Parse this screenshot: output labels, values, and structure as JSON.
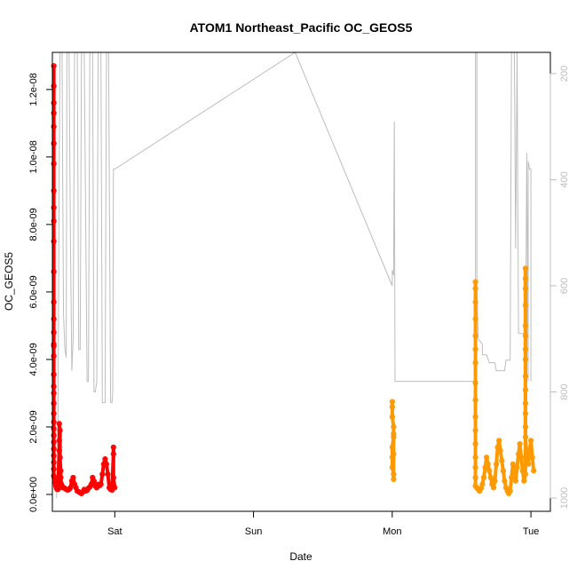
{
  "chart_data": {
    "type": "scatter",
    "title": "ATOM1 Northeast_Pacific OC_GEOS5",
    "xlabel": "Date",
    "ylabel": "OC_GEOS5",
    "x_ticks": [
      {
        "label": "Sat",
        "day": 1.0
      },
      {
        "label": "Sun",
        "day": 2.0
      },
      {
        "label": "Mon",
        "day": 3.0
      },
      {
        "label": "Tue",
        "day": 4.0
      }
    ],
    "xlim": [
      0.55,
      4.14
    ],
    "ylim": [
      -5e-10,
      1.31e-08
    ],
    "y_ticks": [
      {
        "label": "0.0e+00",
        "value": 0
      },
      {
        "label": "2.0e-09",
        "value": 2e-09
      },
      {
        "label": "4.0e-09",
        "value": 4e-09
      },
      {
        "label": "6.0e-09",
        "value": 6e-09
      },
      {
        "label": "8.0e-09",
        "value": 8e-09
      },
      {
        "label": "1.0e-08",
        "value": 1e-08
      },
      {
        "label": "1.2e-08",
        "value": 1.2e-08
      }
    ],
    "y2_ticks": [
      {
        "label": "200",
        "value": 200
      },
      {
        "label": "400",
        "value": 400
      },
      {
        "label": "600",
        "value": 600
      },
      {
        "label": "800",
        "value": 800
      },
      {
        "label": "1000",
        "value": 1000
      }
    ],
    "y2lim": [
      1025,
      160
    ],
    "grid": false,
    "legend": "none",
    "colors": {
      "series1": "#ff0000",
      "series2": "#ff9900",
      "pressure": "#bdbdbd",
      "axes": "#000000"
    },
    "series": [
      {
        "color": "#ff0000",
        "start_day": 0.55,
        "end_day": 1.0,
        "points": [
          [
            0.56,
            1.27e-08
          ],
          [
            0.56,
            1.21e-08
          ],
          [
            0.56,
            1.16e-08
          ],
          [
            0.56,
            1.13e-08
          ],
          [
            0.56,
            1.09e-08
          ],
          [
            0.56,
            1.04e-08
          ],
          [
            0.56,
            9.8e-09
          ],
          [
            0.56,
            9e-09
          ],
          [
            0.56,
            8.5e-09
          ],
          [
            0.56,
            8.1e-09
          ],
          [
            0.56,
            7.5e-09
          ],
          [
            0.56,
            6.6e-09
          ],
          [
            0.56,
            5.7e-09
          ],
          [
            0.56,
            5.2e-09
          ],
          [
            0.56,
            4.8e-09
          ],
          [
            0.56,
            4.45e-09
          ],
          [
            0.56,
            4.4e-09
          ],
          [
            0.56,
            4.1e-09
          ],
          [
            0.56,
            3.55e-09
          ],
          [
            0.56,
            3.2e-09
          ],
          [
            0.56,
            3e-09
          ],
          [
            0.56,
            2.7e-09
          ],
          [
            0.56,
            2.4e-09
          ],
          [
            0.56,
            2.15e-09
          ],
          [
            0.56,
            1.95e-09
          ],
          [
            0.56,
            1.75e-09
          ],
          [
            0.56,
            1.55e-09
          ],
          [
            0.56,
            1.35e-09
          ],
          [
            0.56,
            1.15e-09
          ],
          [
            0.56,
            9.5e-10
          ],
          [
            0.56,
            7.5e-10
          ],
          [
            0.56,
            5.5e-10
          ],
          [
            0.565,
            5e-10
          ],
          [
            0.57,
            3.5e-10
          ],
          [
            0.575,
            2.5e-10
          ],
          [
            0.58,
            1.8e-10
          ],
          [
            0.585,
            1.5e-10
          ],
          [
            0.59,
            1.5e-10
          ],
          [
            0.6,
            1.3e-09
          ],
          [
            0.6,
            1.6e-09
          ],
          [
            0.6,
            2.1e-09
          ],
          [
            0.605,
            1.9e-09
          ],
          [
            0.605,
            1.1e-09
          ],
          [
            0.61,
            7e-10
          ],
          [
            0.61,
            5e-10
          ],
          [
            0.615,
            3e-10
          ],
          [
            0.62,
            2.5e-10
          ],
          [
            0.625,
            2e-10
          ],
          [
            0.63,
            2e-10
          ],
          [
            0.64,
            1.8e-10
          ],
          [
            0.65,
            1.5e-10
          ],
          [
            0.66,
            1.3e-10
          ],
          [
            0.67,
            1.5e-10
          ],
          [
            0.68,
            2e-10
          ],
          [
            0.69,
            4e-10
          ],
          [
            0.7,
            5e-10
          ],
          [
            0.71,
            3e-10
          ],
          [
            0.72,
            2e-10
          ],
          [
            0.73,
            1e-10
          ],
          [
            0.74,
            8e-11
          ],
          [
            0.75,
            5e-11
          ],
          [
            0.76,
            3e-11
          ],
          [
            0.77,
            8e-11
          ],
          [
            0.78,
            1.5e-10
          ],
          [
            0.79,
            1e-10
          ],
          [
            0.8,
            1.2e-10
          ],
          [
            0.81,
            1.8e-10
          ],
          [
            0.82,
            2.2e-10
          ],
          [
            0.83,
            3e-10
          ],
          [
            0.84,
            5e-10
          ],
          [
            0.85,
            4e-10
          ],
          [
            0.86,
            2.5e-10
          ],
          [
            0.87,
            2e-10
          ],
          [
            0.88,
            3e-10
          ],
          [
            0.89,
            2.6e-10
          ],
          [
            0.9,
            3e-10
          ],
          [
            0.91,
            6e-10
          ],
          [
            0.92,
            9e-10
          ],
          [
            0.93,
            1.05e-09
          ],
          [
            0.94,
            9e-10
          ],
          [
            0.95,
            6e-10
          ],
          [
            0.96,
            2e-10
          ],
          [
            0.97,
            1.5e-10
          ],
          [
            0.98,
            1.3e-10
          ],
          [
            0.99,
            1.2e-09
          ],
          [
            0.99,
            1.4e-09
          ],
          [
            0.99,
            5e-10
          ],
          [
            1.0,
            2e-10
          ]
        ]
      },
      {
        "color": "#ff9900",
        "start_day": 3.0,
        "end_day": 4.02,
        "points": [
          [
            3.0,
            2.75e-09
          ],
          [
            3.0,
            2.6e-09
          ],
          [
            3.0,
            2.3e-09
          ],
          [
            3.01,
            2e-09
          ],
          [
            3.01,
            1.7e-09
          ],
          [
            3.0,
            1.4e-09
          ],
          [
            3.0,
            1.1e-09
          ],
          [
            3.0,
            8e-10
          ],
          [
            3.01,
            6e-10
          ],
          [
            3.01,
            4.5e-10
          ],
          [
            3.01,
            1.2e-09
          ],
          [
            3.01,
            1.8e-09
          ],
          [
            3.6,
            6.3e-09
          ],
          [
            3.6,
            6.1e-09
          ],
          [
            3.6,
            5.7e-09
          ],
          [
            3.6,
            5.2e-09
          ],
          [
            3.6,
            4.7e-09
          ],
          [
            3.6,
            4.3e-09
          ],
          [
            3.6,
            3.9e-09
          ],
          [
            3.6,
            3.3e-09
          ],
          [
            3.6,
            2.8e-09
          ],
          [
            3.6,
            2.3e-09
          ],
          [
            3.6,
            1.9e-09
          ],
          [
            3.6,
            1.5e-09
          ],
          [
            3.6,
            1.1e-09
          ],
          [
            3.6,
            8e-10
          ],
          [
            3.6,
            5e-10
          ],
          [
            3.6,
            2.5e-10
          ],
          [
            3.61,
            2e-10
          ],
          [
            3.62,
            1.5e-10
          ],
          [
            3.63,
            1e-10
          ],
          [
            3.64,
            1.8e-10
          ],
          [
            3.65,
            3e-10
          ],
          [
            3.66,
            5e-10
          ],
          [
            3.67,
            8e-10
          ],
          [
            3.68,
            1.1e-09
          ],
          [
            3.69,
            9e-10
          ],
          [
            3.7,
            7e-10
          ],
          [
            3.71,
            5e-10
          ],
          [
            3.72,
            3e-10
          ],
          [
            3.73,
            2e-10
          ],
          [
            3.74,
            4e-10
          ],
          [
            3.75,
            9e-10
          ],
          [
            3.76,
            1.4e-09
          ],
          [
            3.77,
            1.6e-09
          ],
          [
            3.78,
            1.3e-09
          ],
          [
            3.79,
            1e-09
          ],
          [
            3.8,
            7e-10
          ],
          [
            3.81,
            4e-10
          ],
          [
            3.82,
            2e-10
          ],
          [
            3.83,
            1e-10
          ],
          [
            3.84,
            3e-11
          ],
          [
            3.85,
            1e-10
          ],
          [
            3.86,
            5e-10
          ],
          [
            3.87,
            9e-10
          ],
          [
            3.88,
            6e-10
          ],
          [
            3.89,
            4e-10
          ],
          [
            3.9,
            8e-10
          ],
          [
            3.91,
            1.2e-09
          ],
          [
            3.92,
            1.5e-09
          ],
          [
            3.93,
            1.1e-09
          ],
          [
            3.94,
            7e-10
          ],
          [
            3.95,
            4e-10
          ],
          [
            3.96,
            6e-10
          ],
          [
            3.96,
            6.7e-09
          ],
          [
            3.96,
            6.4e-09
          ],
          [
            3.96,
            6.1e-09
          ],
          [
            3.96,
            5.6e-09
          ],
          [
            3.96,
            5e-09
          ],
          [
            3.96,
            4.7e-09
          ],
          [
            3.96,
            4.3e-09
          ],
          [
            3.96,
            4e-09
          ],
          [
            3.96,
            3.5e-09
          ],
          [
            3.96,
            3.1e-09
          ],
          [
            3.96,
            2.7e-09
          ],
          [
            3.96,
            2.4e-09
          ],
          [
            3.96,
            2e-09
          ],
          [
            3.96,
            1.7e-09
          ],
          [
            3.97,
            1.2e-09
          ],
          [
            3.98,
            9e-10
          ],
          [
            3.99,
            1.3e-09
          ],
          [
            4.0,
            1.6e-09
          ],
          [
            4.01,
            1.1e-09
          ],
          [
            4.02,
            7e-10
          ]
        ]
      }
    ],
    "pressure_line": {
      "color": "#bdbdbd",
      "points": [
        [
          0.58,
          1000
        ],
        [
          0.59,
          870
        ],
        [
          0.6,
          350
        ],
        [
          0.605,
          160
        ],
        [
          0.62,
          160
        ],
        [
          0.63,
          650
        ],
        [
          0.64,
          720
        ],
        [
          0.65,
          735
        ],
        [
          0.655,
          160
        ],
        [
          0.67,
          160
        ],
        [
          0.68,
          500
        ],
        [
          0.69,
          760
        ],
        [
          0.7,
          700
        ],
        [
          0.71,
          160
        ],
        [
          0.73,
          160
        ],
        [
          0.74,
          720
        ],
        [
          0.75,
          720
        ],
        [
          0.76,
          160
        ],
        [
          0.78,
          160
        ],
        [
          0.8,
          780
        ],
        [
          0.81,
          780
        ],
        [
          0.82,
          160
        ],
        [
          0.84,
          160
        ],
        [
          0.85,
          800
        ],
        [
          0.86,
          800
        ],
        [
          0.87,
          780
        ],
        [
          0.88,
          160
        ],
        [
          0.9,
          160
        ],
        [
          0.91,
          820
        ],
        [
          0.93,
          820
        ],
        [
          0.94,
          160
        ],
        [
          0.955,
          160
        ],
        [
          0.97,
          820
        ],
        [
          0.98,
          820
        ],
        [
          0.985,
          800
        ],
        [
          0.99,
          380
        ],
        [
          1.0,
          380
        ],
        [
          2.3,
          160
        ],
        [
          3.0,
          600
        ],
        [
          3.0,
          570
        ],
        [
          3.01,
          580
        ],
        [
          3.015,
          290
        ],
        [
          3.02,
          780
        ],
        [
          3.6,
          780
        ],
        [
          3.6,
          160
        ],
        [
          3.61,
          160
        ],
        [
          3.61,
          595
        ],
        [
          3.62,
          700
        ],
        [
          3.65,
          710
        ],
        [
          3.65,
          730
        ],
        [
          3.68,
          730
        ],
        [
          3.7,
          745
        ],
        [
          3.74,
          745
        ],
        [
          3.75,
          760
        ],
        [
          3.81,
          760
        ],
        [
          3.82,
          740
        ],
        [
          3.85,
          740
        ],
        [
          3.86,
          160
        ],
        [
          3.88,
          160
        ],
        [
          3.89,
          530
        ],
        [
          3.9,
          160
        ],
        [
          3.91,
          690
        ],
        [
          3.95,
          690
        ],
        [
          3.96,
          750
        ],
        [
          3.97,
          350
        ],
        [
          3.98,
          780
        ],
        [
          3.98,
          365
        ],
        [
          3.99,
          380
        ],
        [
          4.0,
          380
        ],
        [
          4.0,
          780
        ]
      ]
    }
  }
}
